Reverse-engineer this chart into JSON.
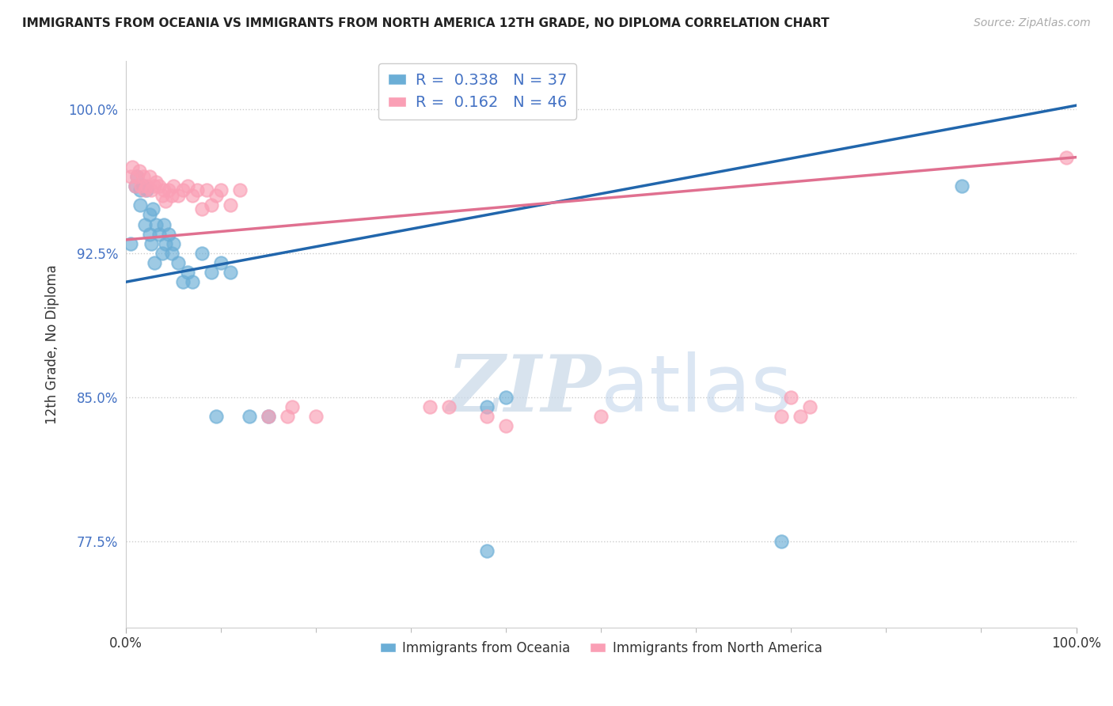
{
  "title": "IMMIGRANTS FROM OCEANIA VS IMMIGRANTS FROM NORTH AMERICA 12TH GRADE, NO DIPLOMA CORRELATION CHART",
  "source": "Source: ZipAtlas.com",
  "ylabel": "12th Grade, No Diploma",
  "legend_blue_label": "Immigrants from Oceania",
  "legend_pink_label": "Immigrants from North America",
  "R_blue": 0.338,
  "N_blue": 37,
  "R_pink": 0.162,
  "N_pink": 46,
  "xlim": [
    0.0,
    1.0
  ],
  "ylim": [
    0.73,
    1.025
  ],
  "yticks": [
    0.775,
    0.85,
    0.925,
    1.0
  ],
  "ytick_labels": [
    "77.5%",
    "85.0%",
    "92.5%",
    "100.0%"
  ],
  "xticks": [
    0.0,
    1.0
  ],
  "xtick_labels": [
    "0.0%",
    "100.0%"
  ],
  "blue_color": "#6baed6",
  "pink_color": "#fa9fb5",
  "blue_line_color": "#2166ac",
  "pink_line_color": "#e07090",
  "watermark_zip": "ZIP",
  "watermark_atlas": "atlas",
  "blue_line_start_y": 0.91,
  "blue_line_end_y": 1.002,
  "pink_line_start_y": 0.932,
  "pink_line_end_y": 0.975,
  "blue_x": [
    0.005,
    0.01,
    0.012,
    0.015,
    0.015,
    0.018,
    0.02,
    0.022,
    0.025,
    0.025,
    0.027,
    0.028,
    0.03,
    0.032,
    0.035,
    0.038,
    0.04,
    0.042,
    0.045,
    0.048,
    0.05,
    0.055,
    0.06,
    0.065,
    0.07,
    0.08,
    0.09,
    0.095,
    0.1,
    0.11,
    0.13,
    0.15,
    0.38,
    0.4,
    0.38,
    0.69,
    0.88
  ],
  "blue_y": [
    0.93,
    0.96,
    0.965,
    0.958,
    0.95,
    0.96,
    0.94,
    0.958,
    0.935,
    0.945,
    0.93,
    0.948,
    0.92,
    0.94,
    0.935,
    0.925,
    0.94,
    0.93,
    0.935,
    0.925,
    0.93,
    0.92,
    0.91,
    0.915,
    0.91,
    0.925,
    0.915,
    0.84,
    0.92,
    0.915,
    0.84,
    0.84,
    0.845,
    0.85,
    0.77,
    0.775,
    0.96
  ],
  "pink_x": [
    0.005,
    0.007,
    0.01,
    0.012,
    0.014,
    0.016,
    0.018,
    0.02,
    0.022,
    0.025,
    0.027,
    0.03,
    0.032,
    0.035,
    0.038,
    0.04,
    0.042,
    0.045,
    0.048,
    0.05,
    0.055,
    0.06,
    0.065,
    0.07,
    0.075,
    0.08,
    0.085,
    0.09,
    0.095,
    0.1,
    0.11,
    0.12,
    0.15,
    0.17,
    0.175,
    0.2,
    0.32,
    0.34,
    0.38,
    0.4,
    0.5,
    0.69,
    0.7,
    0.71,
    0.72,
    0.99
  ],
  "pink_y": [
    0.965,
    0.97,
    0.96,
    0.965,
    0.968,
    0.96,
    0.965,
    0.958,
    0.96,
    0.965,
    0.958,
    0.96,
    0.962,
    0.96,
    0.955,
    0.958,
    0.952,
    0.958,
    0.955,
    0.96,
    0.955,
    0.958,
    0.96,
    0.955,
    0.958,
    0.948,
    0.958,
    0.95,
    0.955,
    0.958,
    0.95,
    0.958,
    0.84,
    0.84,
    0.845,
    0.84,
    0.845,
    0.845,
    0.84,
    0.835,
    0.84,
    0.84,
    0.85,
    0.84,
    0.845,
    0.975
  ]
}
